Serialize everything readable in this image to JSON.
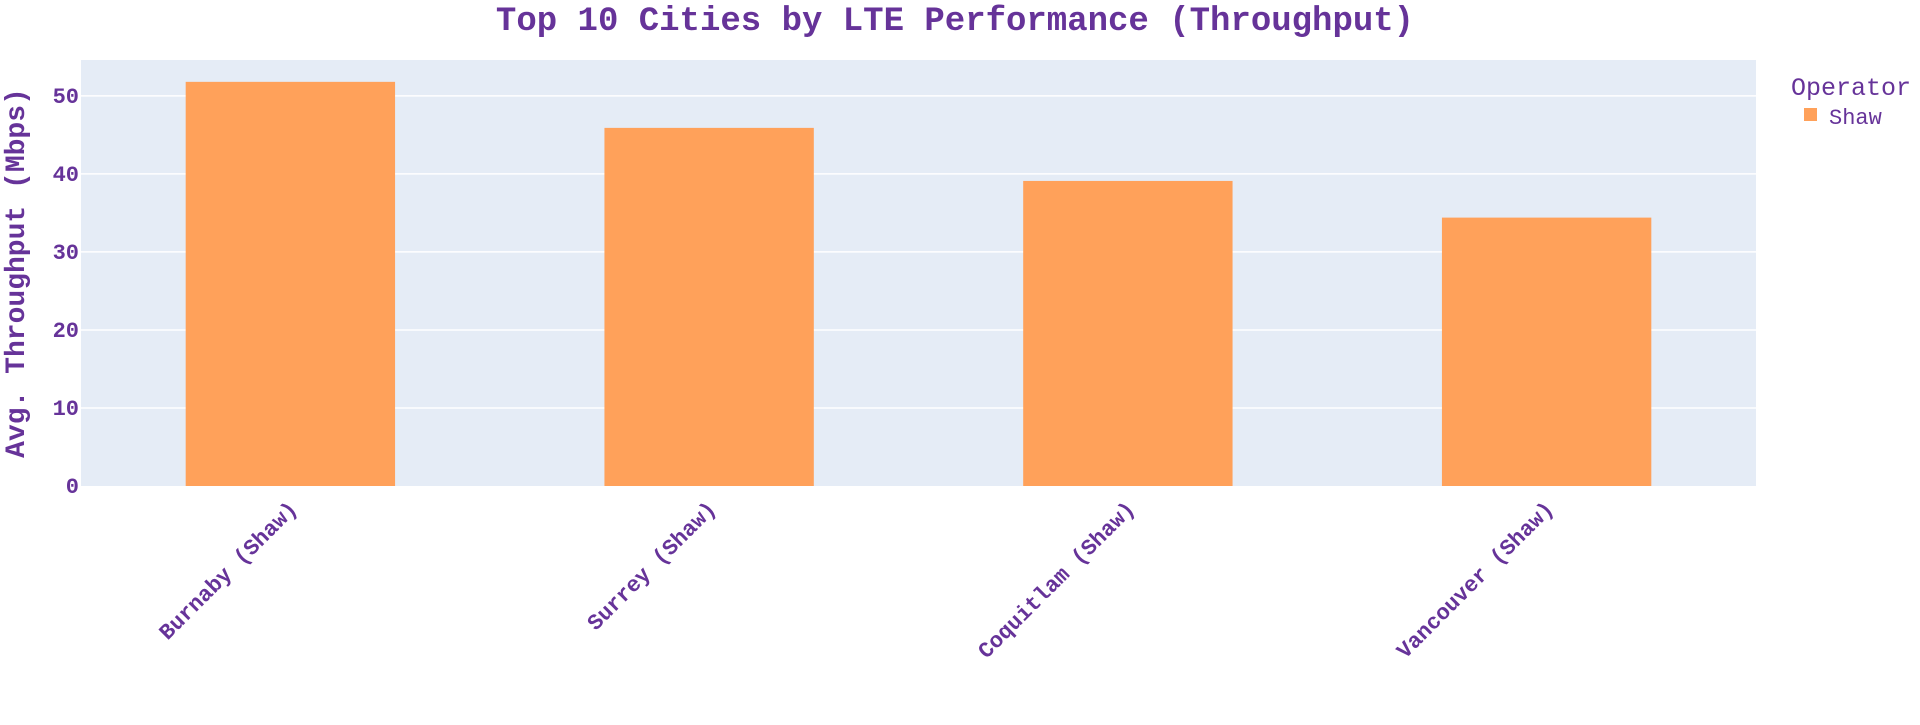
{
  "colors": {
    "text": "#663399",
    "plot_bg": "#E5ECF6",
    "grid": "#ffffff",
    "bar": "#FFA15A",
    "page_bg": "#ffffff"
  },
  "chart_data": {
    "type": "bar",
    "title": "Top 10 Cities by LTE Performance (Throughput)",
    "xlabel": "",
    "ylabel": "Avg. Throughput (Mbps)",
    "categories": [
      "Burnaby (Shaw)",
      "Surrey (Shaw)",
      "Coquitlam (Shaw)",
      "Vancouver (Shaw)"
    ],
    "series": [
      {
        "name": "Shaw",
        "color": "#FFA15A",
        "values": [
          51.8,
          45.9,
          39.1,
          34.4
        ]
      }
    ],
    "ylim": [
      0,
      54.6
    ],
    "yticks": [
      0,
      10,
      20,
      30,
      40,
      50
    ],
    "grid": true,
    "legend": {
      "title": "Operator",
      "placement": "top-right"
    }
  }
}
